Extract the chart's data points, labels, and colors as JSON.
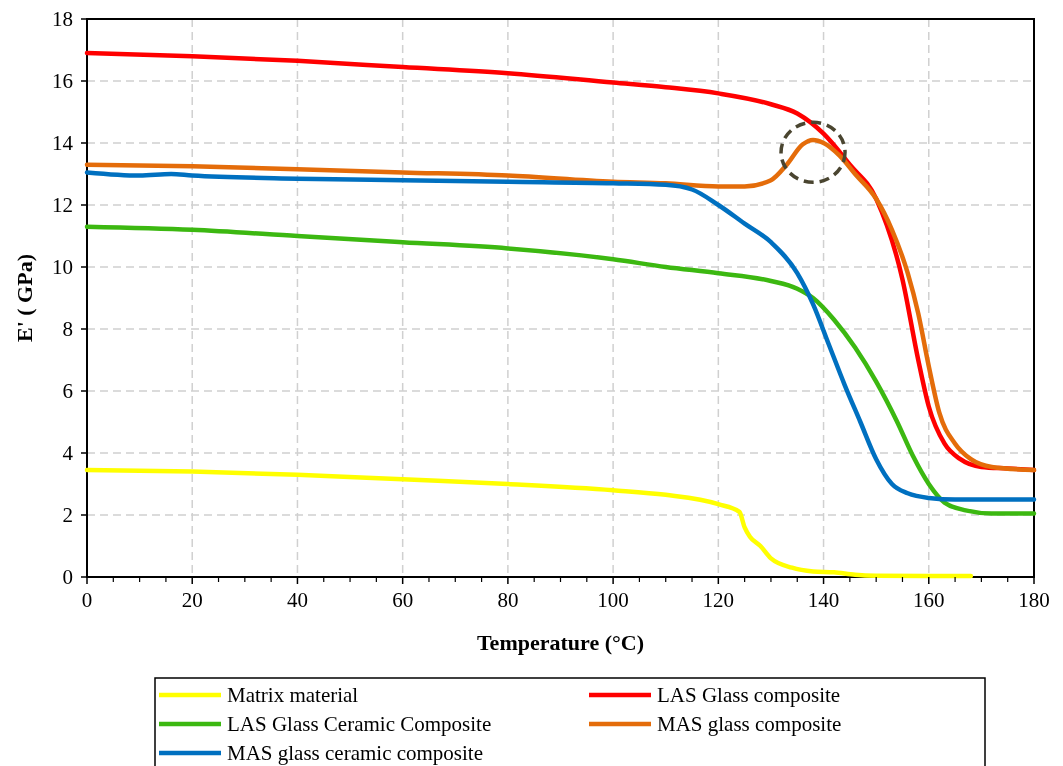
{
  "chart_data": {
    "type": "line",
    "xlabel": "Temperature (°C)",
    "ylabel": "E' ( GPa)",
    "xlim": [
      0,
      180
    ],
    "ylim": [
      0,
      18
    ],
    "xticks": [
      0,
      20,
      40,
      60,
      80,
      100,
      120,
      140,
      160,
      180
    ],
    "yticks": [
      0,
      2,
      4,
      6,
      8,
      10,
      12,
      14,
      16,
      18
    ],
    "grid": true,
    "legend": "bottom",
    "marker": "none",
    "line_style": "solid",
    "series": [
      {
        "name": "Matrix material",
        "color": "#ffff00",
        "x": [
          0,
          20,
          40,
          60,
          80,
          100,
          110,
          120,
          124,
          125,
          126,
          128,
          130,
          134,
          138,
          142,
          146,
          150,
          160,
          168
        ],
        "values": [
          3.45,
          3.4,
          3.3,
          3.15,
          3.0,
          2.8,
          2.65,
          2.35,
          2.1,
          1.6,
          1.3,
          1.0,
          0.6,
          0.3,
          0.18,
          0.15,
          0.07,
          0.04,
          0.03,
          0.03
        ]
      },
      {
        "name": "LAS Glass composite",
        "color": "#ff0000",
        "x": [
          0,
          20,
          40,
          60,
          80,
          100,
          110,
          120,
          130,
          135,
          140,
          145,
          150,
          155,
          158,
          160,
          163,
          166,
          170,
          175,
          180
        ],
        "values": [
          16.9,
          16.8,
          16.65,
          16.45,
          16.25,
          15.95,
          15.8,
          15.6,
          15.25,
          14.95,
          14.3,
          13.3,
          12.2,
          9.6,
          7.0,
          5.5,
          4.3,
          3.8,
          3.55,
          3.5,
          3.45
        ]
      },
      {
        "name": "LAS Glass Ceramic Composite",
        "color": "#3cb811",
        "x": [
          0,
          20,
          40,
          60,
          80,
          100,
          110,
          120,
          130,
          135,
          138,
          142,
          146,
          150,
          154,
          157,
          160,
          163,
          167,
          172,
          180
        ],
        "values": [
          11.3,
          11.2,
          11.0,
          10.8,
          10.6,
          10.25,
          10.0,
          9.8,
          9.55,
          9.3,
          9.0,
          8.3,
          7.4,
          6.3,
          5.0,
          3.9,
          3.0,
          2.4,
          2.15,
          2.05,
          2.05
        ]
      },
      {
        "name": "MAS glass composite",
        "color": "#e46c0a",
        "x": [
          0,
          20,
          40,
          60,
          80,
          100,
          110,
          120,
          125,
          130,
          133,
          136,
          138,
          140,
          143,
          146,
          150,
          153,
          156,
          158,
          160,
          162,
          165,
          168,
          172,
          180
        ],
        "values": [
          13.3,
          13.25,
          13.15,
          13.05,
          12.95,
          12.75,
          12.7,
          12.6,
          12.6,
          12.8,
          13.3,
          13.95,
          14.1,
          14.0,
          13.6,
          13.0,
          12.2,
          11.2,
          9.8,
          8.5,
          6.8,
          5.3,
          4.3,
          3.8,
          3.55,
          3.45
        ]
      },
      {
        "name": "MAS glass ceramic composite",
        "color": "#0070c0",
        "x": [
          0,
          10,
          16,
          20,
          40,
          60,
          80,
          100,
          110,
          115,
          120,
          125,
          130,
          135,
          138,
          141,
          144,
          147,
          150,
          153,
          156,
          160,
          165,
          180
        ],
        "values": [
          13.05,
          12.95,
          13.0,
          12.95,
          12.85,
          12.8,
          12.75,
          12.7,
          12.65,
          12.5,
          12.0,
          11.4,
          10.8,
          9.8,
          8.8,
          7.5,
          6.2,
          5.0,
          3.8,
          3.0,
          2.7,
          2.55,
          2.5,
          2.5
        ]
      }
    ]
  }
}
